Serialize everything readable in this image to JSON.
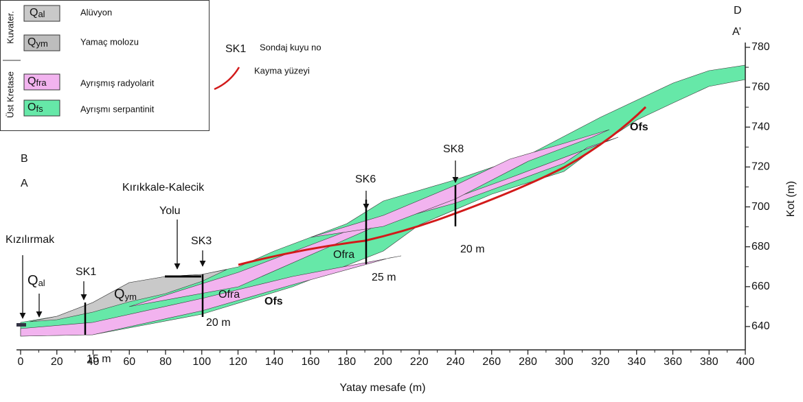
{
  "legend": {
    "groups": [
      "Kuvater.",
      "Üst Kretase"
    ],
    "items": [
      {
        "main": "Q",
        "sub": "al",
        "label": "Alüvyon"
      },
      {
        "main": "Q",
        "sub": "ym",
        "label": "Yamaç molozu"
      },
      {
        "main": "Q",
        "sub": "fra",
        "label": "Ayrışmış radyolarit"
      },
      {
        "main": "O",
        "sub": "fs",
        "label": "Ayrışmı serpantinit"
      }
    ],
    "borehole_symbol": "SK1",
    "borehole_label": "Sondaj kuyu no",
    "slip_label": "Kayma yüzeyi"
  },
  "x_axis": {
    "title": "Yatay mesafe (m)",
    "ticks": [
      0,
      20,
      40,
      60,
      80,
      100,
      120,
      140,
      160,
      180,
      200,
      220,
      240,
      260,
      280,
      300,
      320,
      340,
      360,
      380,
      400
    ]
  },
  "y_axis": {
    "title": "Kot (m)",
    "ticks": [
      640,
      660,
      680,
      700,
      720,
      740,
      760,
      780
    ]
  },
  "section_ends": {
    "left": [
      "B",
      "A"
    ],
    "right": [
      "D",
      "A’"
    ]
  },
  "places": {
    "river": "Kızılırmak",
    "road": [
      "Kırıkkale-Kalecik",
      "Yolu"
    ]
  },
  "boreholes": [
    {
      "name": "SK1",
      "depth": "15 m"
    },
    {
      "name": "SK3",
      "depth": "20 m"
    },
    {
      "name": "SK6",
      "depth": "25 m"
    },
    {
      "name": "SK8",
      "depth": "20 m"
    }
  ],
  "units": [
    {
      "main": "Q",
      "sub": "al"
    },
    {
      "main": "Q",
      "sub": "ym"
    },
    {
      "main": "Ofra"
    },
    {
      "main": "Ofs"
    },
    {
      "main": "Ofra"
    },
    {
      "main": "Ofs"
    }
  ]
}
